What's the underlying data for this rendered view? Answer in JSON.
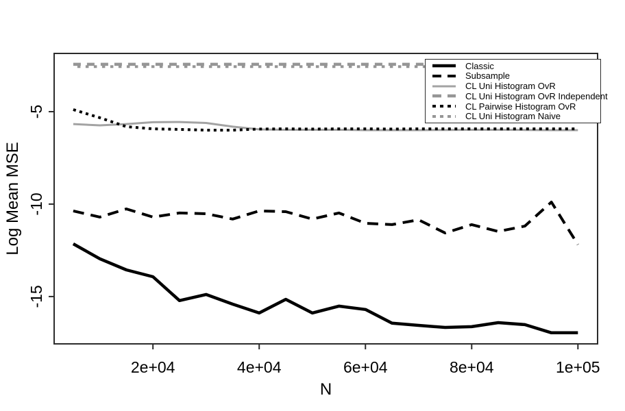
{
  "chart_data": {
    "type": "line",
    "title": "",
    "xlabel": "N",
    "ylabel": "Log Mean MSE",
    "grid": false,
    "legend_position": "top-right",
    "xlim": [
      1400,
      103700
    ],
    "ylim": [
      -17.56,
      -1.85
    ],
    "x_ticks": [
      {
        "value": 20000,
        "label": "2e+04"
      },
      {
        "value": 40000,
        "label": "4e+04"
      },
      {
        "value": 60000,
        "label": "6e+04"
      },
      {
        "value": 80000,
        "label": "8e+04"
      },
      {
        "value": 100000,
        "label": "1e+05"
      }
    ],
    "y_ticks": [
      {
        "value": -5,
        "label": "-5"
      },
      {
        "value": -10,
        "label": "-10"
      },
      {
        "value": -15,
        "label": "-15"
      }
    ],
    "x": [
      5000,
      10000,
      15000,
      20000,
      25000,
      30000,
      35000,
      40000,
      45000,
      50000,
      55000,
      60000,
      65000,
      70000,
      75000,
      80000,
      85000,
      90000,
      95000,
      100000
    ],
    "series": [
      {
        "name": "Classic",
        "color": "#000000",
        "linetype": "solid",
        "width": 4.5,
        "dasharray": "",
        "dashoffset": 0,
        "values": [
          -12.15,
          -12.96,
          -13.56,
          -13.93,
          -15.22,
          -14.89,
          -15.41,
          -15.89,
          -15.15,
          -15.89,
          -15.52,
          -15.7,
          -16.44,
          -16.56,
          -16.67,
          -16.63,
          -16.41,
          -16.52,
          -16.96,
          -16.96
        ]
      },
      {
        "name": "Subsample",
        "color": "#000000",
        "linetype": "dashed",
        "width": 4,
        "dasharray": "16 10",
        "dashoffset": 0,
        "values": [
          -10.37,
          -10.7,
          -10.26,
          -10.7,
          -10.48,
          -10.52,
          -10.81,
          -10.37,
          -10.41,
          -10.81,
          -10.48,
          -11.04,
          -11.11,
          -10.85,
          -11.56,
          -11.11,
          -11.48,
          -11.19,
          -9.89,
          -12.19
        ]
      },
      {
        "name": "CL Uni Histogram OvR",
        "color": "#a3a3a3",
        "linetype": "solid",
        "width": 3,
        "dasharray": "",
        "dashoffset": 0,
        "values": [
          -5.67,
          -5.74,
          -5.67,
          -5.57,
          -5.56,
          -5.61,
          -5.81,
          -5.96,
          -5.98,
          -5.98,
          -5.98,
          -6.0,
          -6.0,
          -6.0,
          -5.99,
          -5.98,
          -5.98,
          -5.99,
          -6.0,
          -6.0
        ]
      },
      {
        "name": "CL Uni Histogram OvR Independent",
        "color": "#969696",
        "linetype": "dashed",
        "width": 4.5,
        "dasharray": "11 9",
        "dashoffset": 0,
        "values": [
          -2.44,
          -2.44,
          -2.44,
          -2.44,
          -2.44,
          -2.44,
          -2.44,
          -2.44,
          -2.44,
          -2.44,
          -2.44,
          -2.44,
          -2.44,
          -2.44,
          -2.44,
          -2.44,
          -2.44,
          -2.44,
          -2.44,
          -2.44
        ]
      },
      {
        "name": "CL Pairwise Histogram OvR",
        "color": "#000000",
        "linetype": "dotted",
        "width": 4,
        "dasharray": "4 5.5",
        "dashoffset": 0,
        "values": [
          -4.89,
          -5.33,
          -5.81,
          -5.93,
          -5.96,
          -6.0,
          -6.0,
          -5.94,
          -5.93,
          -5.94,
          -5.93,
          -5.93,
          -5.94,
          -5.93,
          -5.93,
          -5.93,
          -5.93,
          -5.93,
          -5.93,
          -5.93
        ]
      },
      {
        "name": "CL Uni Histogram Naive",
        "color": "#969696",
        "linetype": "dotted",
        "width": 4,
        "dasharray": "4.5 7.5",
        "dashoffset": 6,
        "values": [
          -2.56,
          -2.56,
          -2.56,
          -2.56,
          -2.56,
          -2.56,
          -2.56,
          -2.56,
          -2.56,
          -2.56,
          -2.56,
          -2.56,
          -2.56,
          -2.56,
          -2.56,
          -2.56,
          -2.56,
          -2.56,
          -2.56,
          -2.56
        ]
      }
    ]
  }
}
